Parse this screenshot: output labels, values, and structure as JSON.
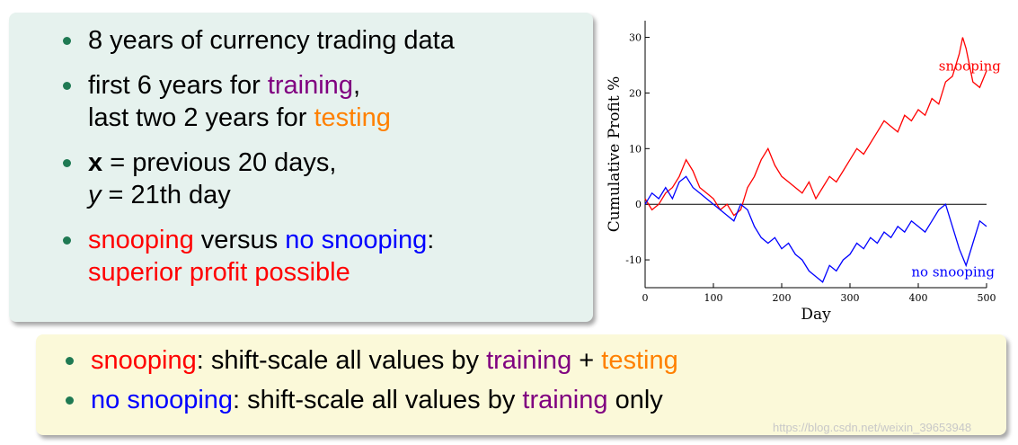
{
  "bullets_top": [
    {
      "parts": [
        {
          "text": "8 years of currency trading data",
          "style": ""
        }
      ]
    },
    {
      "parts": [
        {
          "text": "first 6 years for ",
          "style": ""
        },
        {
          "text": "training",
          "style": "purple"
        },
        {
          "text": ",",
          "style": ""
        }
      ],
      "line2": [
        {
          "text": "last two 2 years for ",
          "style": ""
        },
        {
          "text": "testing",
          "style": "orange"
        }
      ]
    },
    {
      "parts": [
        {
          "text": "x",
          "style": "bold"
        },
        {
          "text": " = previous 20 days,",
          "style": ""
        }
      ],
      "line2": [
        {
          "text": "y",
          "style": "ital"
        },
        {
          "text": " = 21th day",
          "style": ""
        }
      ]
    },
    {
      "parts": [
        {
          "text": "snooping",
          "style": "red"
        },
        {
          "text": " versus ",
          "style": ""
        },
        {
          "text": "no snooping",
          "style": "blue"
        },
        {
          "text": ":",
          "style": ""
        }
      ],
      "line2": [
        {
          "text": "superior profit possible",
          "style": "red"
        }
      ]
    }
  ],
  "bullets_bottom": [
    {
      "parts": [
        {
          "text": "snooping",
          "style": "red"
        },
        {
          "text": ": shift-scale all values by ",
          "style": ""
        },
        {
          "text": "training",
          "style": "purple"
        },
        {
          "text": " + ",
          "style": ""
        },
        {
          "text": "testing",
          "style": "orange"
        }
      ]
    },
    {
      "parts": [
        {
          "text": "no snooping",
          "style": "blue"
        },
        {
          "text": ": shift-scale all values by ",
          "style": ""
        },
        {
          "text": "training",
          "style": "purple"
        },
        {
          "text": " only",
          "style": ""
        }
      ]
    }
  ],
  "watermark": "https://blog.csdn.net/weixin_39653948",
  "chart_data": {
    "type": "line",
    "xlabel": "Day",
    "ylabel": "Cumulative Profit %",
    "xlim": [
      0,
      500
    ],
    "ylim": [
      -15,
      33
    ],
    "xticks": [
      0,
      100,
      200,
      300,
      400,
      500
    ],
    "yticks": [
      -10,
      0,
      10,
      20,
      30
    ],
    "zero_line": true,
    "series": [
      {
        "name": "snooping",
        "color": "#ff0000",
        "x": [
          0,
          10,
          20,
          30,
          40,
          50,
          60,
          70,
          80,
          90,
          100,
          110,
          120,
          130,
          140,
          150,
          160,
          170,
          180,
          190,
          200,
          210,
          220,
          230,
          240,
          250,
          260,
          270,
          280,
          290,
          300,
          310,
          320,
          330,
          340,
          350,
          360,
          370,
          380,
          390,
          400,
          410,
          420,
          430,
          440,
          450,
          460,
          465,
          470,
          480,
          490,
          500
        ],
        "y": [
          1,
          -1,
          0,
          2,
          3,
          5,
          8,
          6,
          3,
          2,
          1,
          -1,
          0,
          -2,
          -1,
          3,
          5,
          8,
          10,
          7,
          5,
          4,
          3,
          2,
          4,
          1,
          3,
          5,
          4,
          6,
          8,
          10,
          9,
          11,
          13,
          15,
          14,
          13,
          16,
          15,
          17,
          16,
          19,
          18,
          22,
          23,
          27,
          30,
          28,
          22,
          21,
          24
        ]
      },
      {
        "name": "no snooping",
        "color": "#0000ff",
        "x": [
          0,
          10,
          20,
          30,
          40,
          50,
          60,
          70,
          80,
          90,
          100,
          110,
          120,
          130,
          140,
          150,
          160,
          170,
          180,
          190,
          200,
          210,
          220,
          230,
          240,
          250,
          260,
          270,
          280,
          290,
          300,
          310,
          320,
          330,
          340,
          350,
          360,
          370,
          380,
          390,
          400,
          410,
          420,
          430,
          440,
          450,
          460,
          470,
          480,
          490,
          500
        ],
        "y": [
          0,
          2,
          1,
          3,
          1,
          4,
          5,
          3,
          2,
          1,
          0,
          -1,
          -2,
          -3,
          0,
          -1,
          -4,
          -6,
          -7,
          -6,
          -8,
          -7,
          -9,
          -10,
          -12,
          -13,
          -14,
          -11,
          -12,
          -10,
          -9,
          -7,
          -8,
          -6,
          -7,
          -5,
          -6,
          -4,
          -5,
          -3,
          -4,
          -5,
          -3,
          -1,
          0,
          -4,
          -8,
          -11,
          -7,
          -3,
          -4
        ]
      }
    ],
    "annotations": [
      {
        "text": "snooping",
        "x": 430,
        "y": 24,
        "color": "#ff0000"
      },
      {
        "text": "no snooping",
        "x": 390,
        "y": -13,
        "color": "#0000ff"
      }
    ]
  }
}
